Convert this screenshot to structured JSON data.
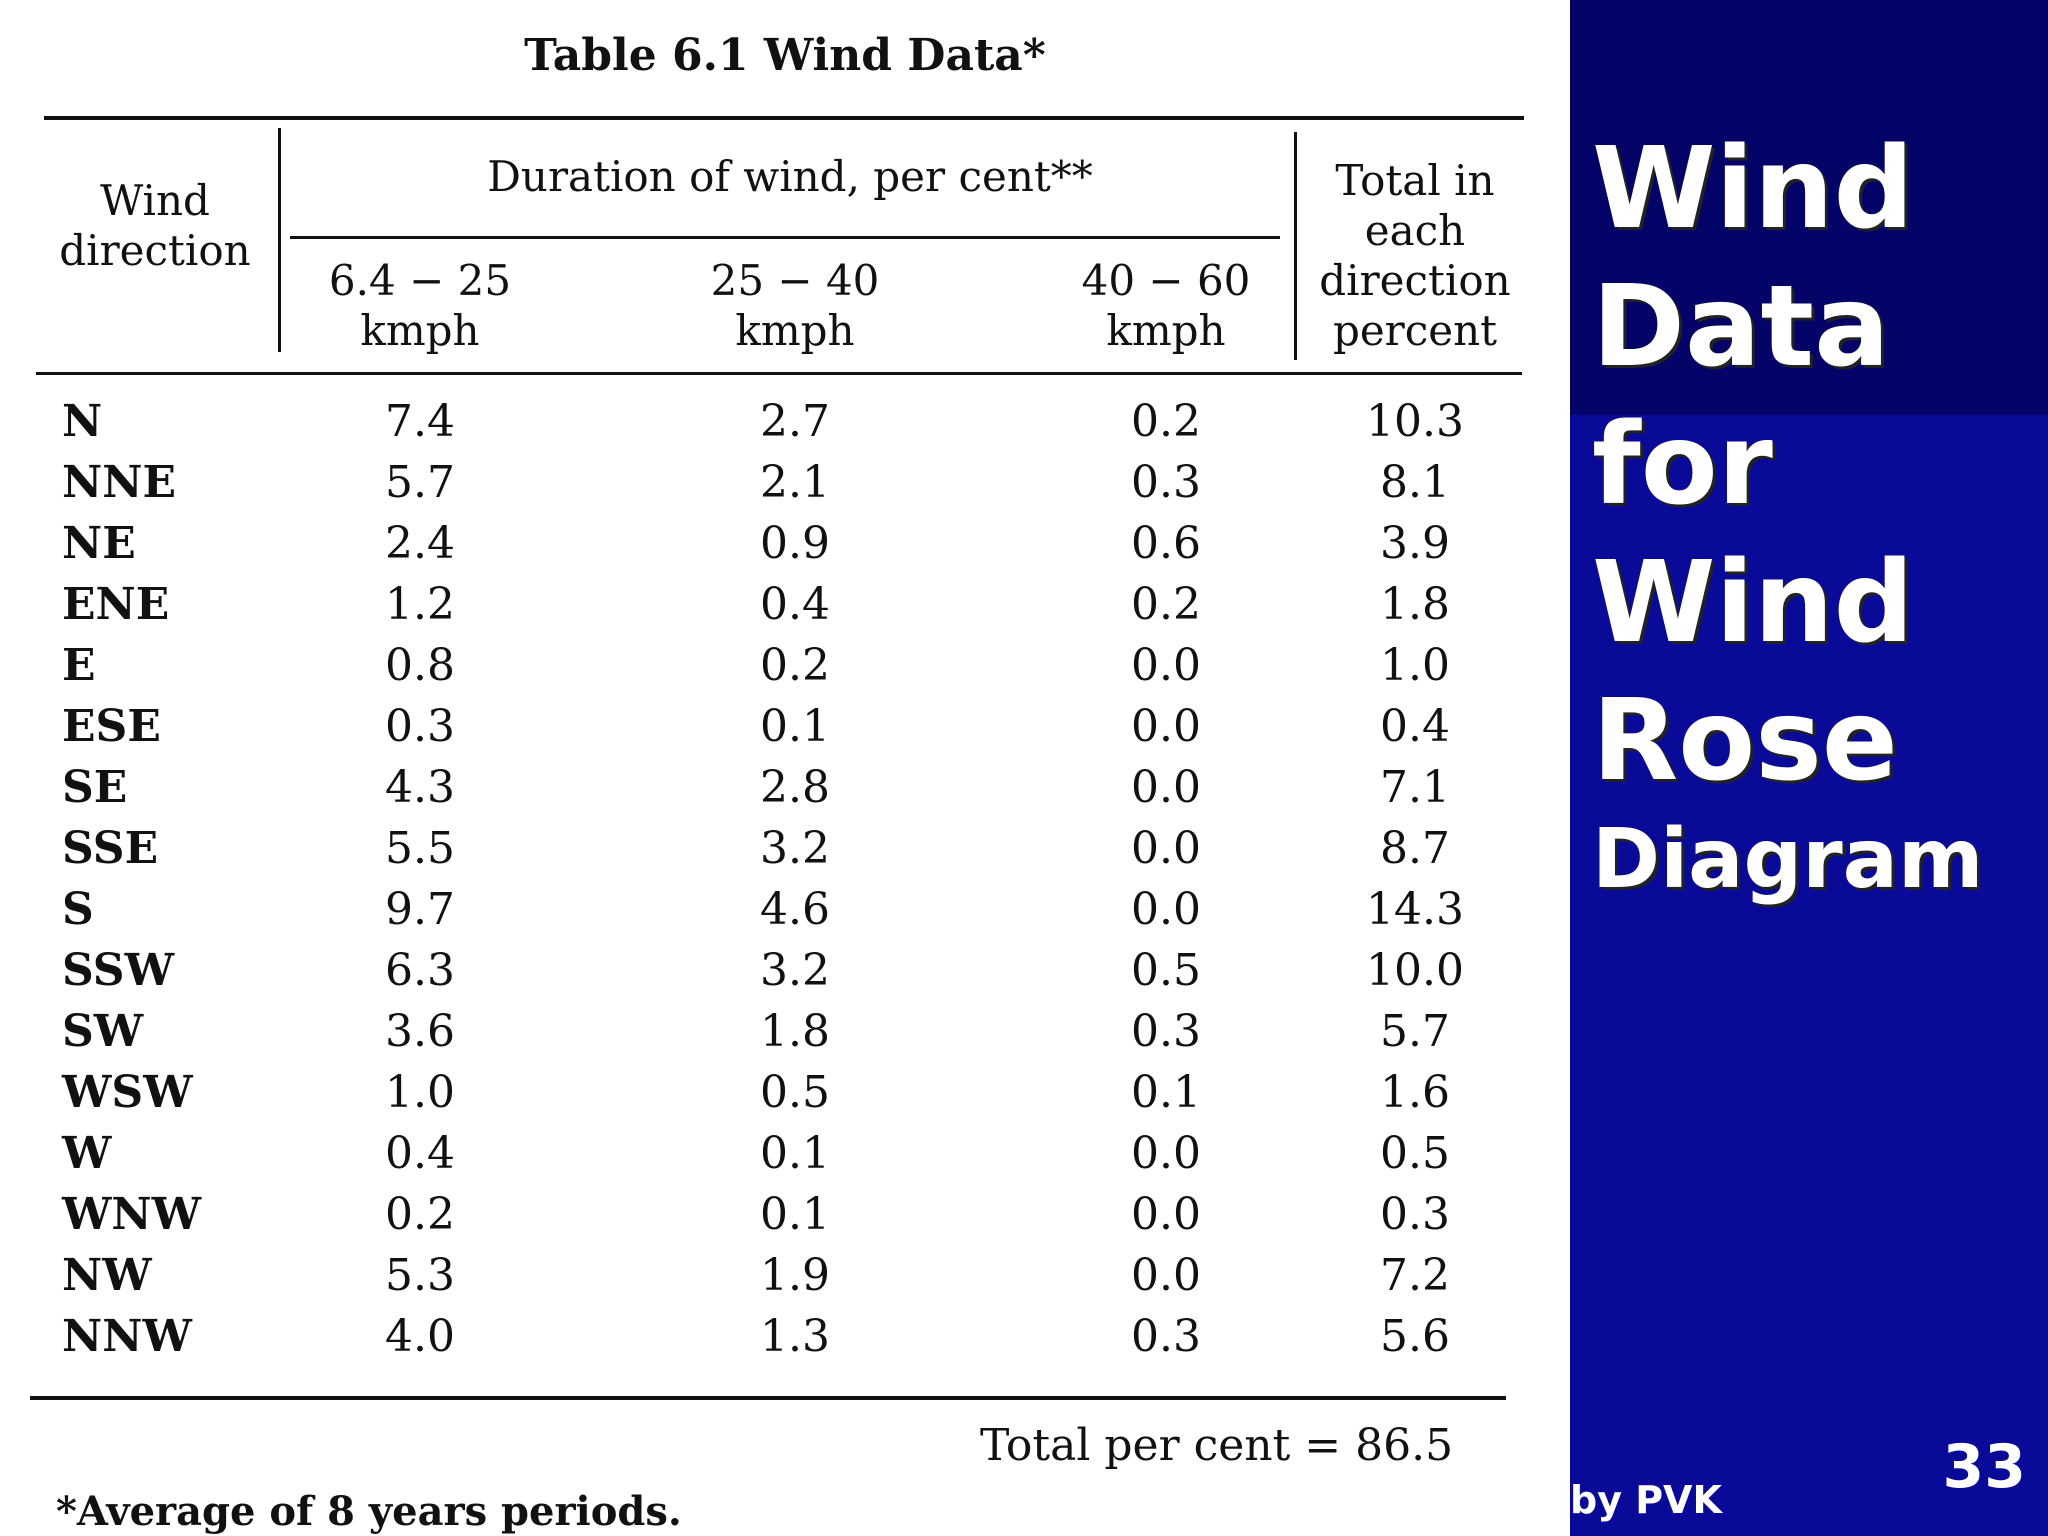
{
  "table": {
    "title": "Table 6.1   Wind Data*",
    "headers": {
      "direction": [
        "Wind",
        "direction"
      ],
      "duration_group": "Duration of wind, per cent**",
      "col1": [
        "6.4 − 25",
        "kmph"
      ],
      "col2": [
        "25 − 40",
        "kmph"
      ],
      "col3": [
        "40 − 60",
        "kmph"
      ],
      "total": [
        "Total  in",
        "each",
        "direction",
        "percent"
      ]
    },
    "rows": [
      {
        "dir": "N",
        "c1": "7.4",
        "c2": "2.7",
        "c3": "0.2",
        "total": "10.3"
      },
      {
        "dir": "NNE",
        "c1": "5.7",
        "c2": "2.1",
        "c3": "0.3",
        "total": "8.1"
      },
      {
        "dir": "NE",
        "c1": "2.4",
        "c2": "0.9",
        "c3": "0.6",
        "total": "3.9"
      },
      {
        "dir": "ENE",
        "c1": "1.2",
        "c2": "0.4",
        "c3": "0.2",
        "total": "1.8"
      },
      {
        "dir": "E",
        "c1": "0.8",
        "c2": "0.2",
        "c3": "0.0",
        "total": "1.0"
      },
      {
        "dir": "ESE",
        "c1": "0.3",
        "c2": "0.1",
        "c3": "0.0",
        "total": "0.4"
      },
      {
        "dir": "SE",
        "c1": "4.3",
        "c2": "2.8",
        "c3": "0.0",
        "total": "7.1"
      },
      {
        "dir": "SSE",
        "c1": "5.5",
        "c2": "3.2",
        "c3": "0.0",
        "total": "8.7"
      },
      {
        "dir": "S",
        "c1": "9.7",
        "c2": "4.6",
        "c3": "0.0",
        "total": "14.3"
      },
      {
        "dir": "SSW",
        "c1": "6.3",
        "c2": "3.2",
        "c3": "0.5",
        "total": "10.0"
      },
      {
        "dir": "SW",
        "c1": "3.6",
        "c2": "1.8",
        "c3": "0.3",
        "total": "5.7"
      },
      {
        "dir": "WSW",
        "c1": "1.0",
        "c2": "0.5",
        "c3": "0.1",
        "total": "1.6"
      },
      {
        "dir": "W",
        "c1": "0.4",
        "c2": "0.1",
        "c3": "0.0",
        "total": "0.5"
      },
      {
        "dir": "WNW",
        "c1": "0.2",
        "c2": "0.1",
        "c3": "0.0",
        "total": "0.3"
      },
      {
        "dir": "NW",
        "c1": "5.3",
        "c2": "1.9",
        "c3": "0.0",
        "total": "7.2"
      },
      {
        "dir": "NNW",
        "c1": "4.0",
        "c2": "1.3",
        "c3": "0.3",
        "total": "5.6"
      }
    ],
    "total_line": "Total per cent = 86.5",
    "footnote": "*Average of 8 years periods."
  },
  "slide": {
    "title_lines": [
      "Wind",
      "Data",
      "for",
      "Wind",
      "Rose"
    ],
    "title_last": "Diagram",
    "author": "by PVK",
    "number": "33"
  },
  "colors": {
    "panel_dark": "#040468",
    "panel_blue": "#0a0a98",
    "table_bg": "#ffffff"
  }
}
